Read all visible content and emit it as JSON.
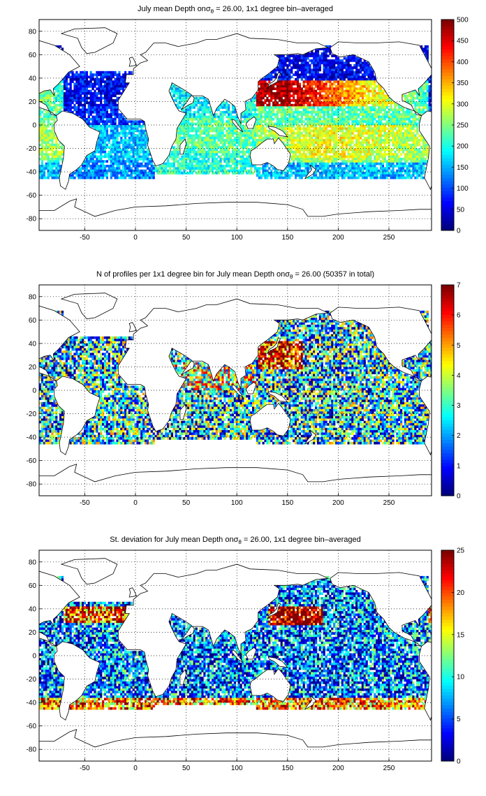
{
  "colors": {
    "colormap": "jet",
    "coast": "#000000",
    "grid": "#000000",
    "land": "#ffffff"
  },
  "axes": {
    "x_ticks": [
      -50,
      0,
      50,
      100,
      150,
      200,
      250
    ],
    "y_ticks": [
      -80,
      -60,
      -40,
      -20,
      0,
      20,
      40,
      60,
      80
    ],
    "xlim": [
      -95,
      292
    ],
    "ylim": [
      -90,
      90
    ],
    "grid": "dotted"
  },
  "panels": [
    {
      "title_pre": "July mean Depth on",
      "title_sigma": "σ",
      "title_sub": "θ",
      "title_post": " = 26.00, 1x1 degree bin–averaged",
      "cbar_min": 0,
      "cbar_max": 500,
      "cbar_ticks": [
        0,
        50,
        100,
        150,
        200,
        250,
        300,
        350,
        400,
        450,
        500
      ]
    },
    {
      "title_pre": "N of profiles per 1x1 degree bin for July mean Depth on",
      "title_sigma": "σ",
      "title_sub": "θ",
      "title_post": " = 26.00 (50357 in total)",
      "cbar_min": 0,
      "cbar_max": 7,
      "cbar_ticks": [
        0,
        1,
        2,
        3,
        4,
        5,
        6,
        7
      ]
    },
    {
      "title_pre": "St. deviation for July mean Depth on",
      "title_sigma": "σ",
      "title_sub": "θ",
      "title_post": " = 26.00, 1x1 degree bin–averaged",
      "cbar_min": 0,
      "cbar_max": 25,
      "cbar_ticks": [
        0,
        5,
        10,
        15,
        20,
        25
      ]
    }
  ]
}
